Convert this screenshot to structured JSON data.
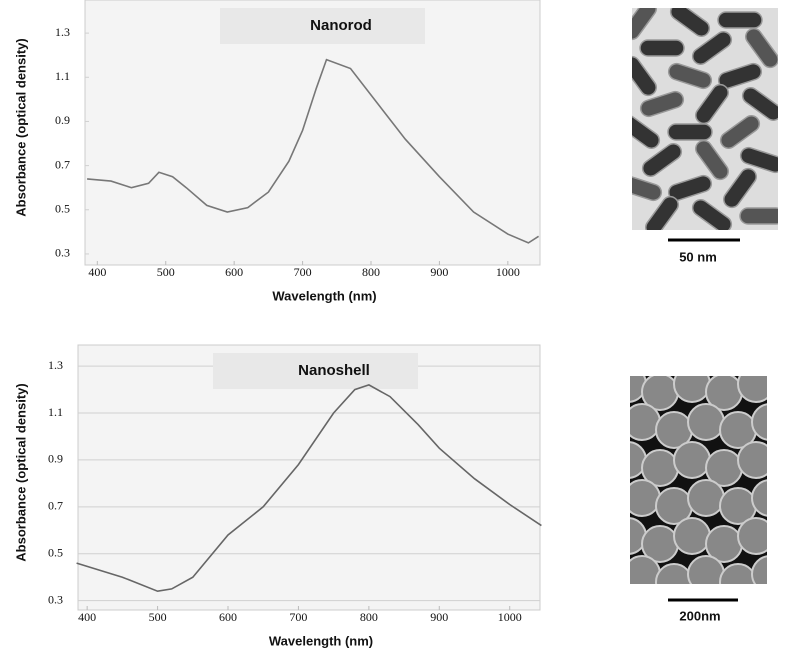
{
  "chart_data": [
    {
      "type": "line",
      "title": "Nanorod",
      "x_label": "Wavelength (nm)",
      "y_label": "Absorbance (optical density)",
      "x": [
        385,
        420,
        450,
        475,
        490,
        510,
        530,
        560,
        590,
        620,
        650,
        680,
        700,
        720,
        735,
        770,
        800,
        850,
        900,
        950,
        1000,
        1030,
        1045
      ],
      "values": [
        0.64,
        0.63,
        0.6,
        0.62,
        0.67,
        0.65,
        0.6,
        0.52,
        0.49,
        0.51,
        0.58,
        0.72,
        0.86,
        1.05,
        1.18,
        1.14,
        1.02,
        0.82,
        0.65,
        0.49,
        0.39,
        0.35,
        0.38
      ],
      "color": "#777777",
      "xlim": [
        382,
        1047
      ],
      "ylim": [
        0.25,
        1.45
      ],
      "xticks": [
        400,
        500,
        600,
        700,
        800,
        900,
        1000
      ],
      "yticks": [
        0.3,
        0.5,
        0.7,
        0.9,
        1.1,
        1.3
      ],
      "grid": false
    },
    {
      "type": "line",
      "title": "Nanoshell",
      "x_label": "Wavelength (nm)",
      "y_label": "Absorbance (optical density)",
      "x": [
        385,
        450,
        500,
        520,
        550,
        600,
        650,
        700,
        750,
        780,
        800,
        830,
        870,
        900,
        950,
        1000,
        1045
      ],
      "values": [
        0.46,
        0.4,
        0.34,
        0.35,
        0.4,
        0.58,
        0.7,
        0.88,
        1.1,
        1.2,
        1.22,
        1.17,
        1.05,
        0.95,
        0.82,
        0.71,
        0.62
      ],
      "color": "#666666",
      "xlim": [
        387,
        1043
      ],
      "ylim": [
        0.26,
        1.39
      ],
      "xticks": [
        400,
        500,
        600,
        700,
        800,
        900,
        1000
      ],
      "yticks": [
        0.3,
        0.5,
        0.7,
        0.9,
        1.1,
        1.3
      ],
      "grid": true
    }
  ],
  "micrographs": [
    {
      "scale_bar": "50 nm"
    },
    {
      "scale_bar": "200nm"
    }
  ]
}
